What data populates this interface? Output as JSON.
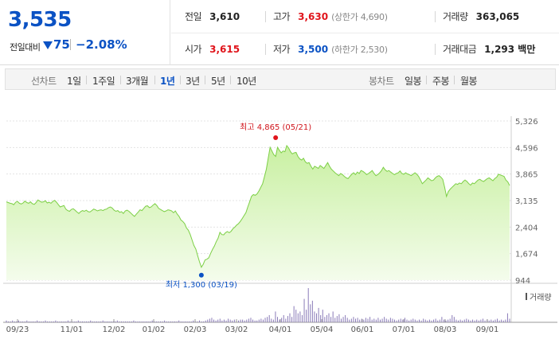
{
  "summary": {
    "current_price": "3,535",
    "change_label": "전일대비",
    "change_amount": "75",
    "change_rate": "−2.08%",
    "prev_close": {
      "label": "전일",
      "value": "3,610"
    },
    "high": {
      "label": "고가",
      "value": "3,630",
      "sub": "(상한가 4,690)"
    },
    "volume": {
      "label": "거래량",
      "value": "363,065"
    },
    "open": {
      "label": "시가",
      "value": "3,615"
    },
    "low": {
      "label": "저가",
      "value": "3,500",
      "sub": "(하한가 2,530)"
    },
    "turnover": {
      "label": "거래대금",
      "value": "1,293 백만"
    }
  },
  "tabs": {
    "line_label": "선차트",
    "line_items": [
      "1일",
      "1주일",
      "3개월",
      "1년",
      "3년",
      "5년",
      "10년"
    ],
    "active": "1년",
    "candle_label": "봉차트",
    "candle_items": [
      "일봉",
      "주봉",
      "월봉"
    ]
  },
  "colors": {
    "up": "#e0141b",
    "down": "#0b52c4",
    "area_fill": "#c9f0a2",
    "line": "#7ccf45",
    "volume": "#8a7bb8"
  },
  "chart_data": {
    "type": "area",
    "y_ticks": [
      944,
      1674,
      2404,
      3135,
      3865,
      4596,
      5326
    ],
    "ylim": [
      944,
      5326
    ],
    "x_ticks": [
      "09/23",
      "11/01",
      "12/02",
      "01/02",
      "02/03",
      "03/02",
      "04/01",
      "05/04",
      "06/01",
      "07/01",
      "08/03",
      "09/01"
    ],
    "series": [
      {
        "values": [
          3100,
          3080,
          3060,
          3050,
          3020,
          3090,
          3110,
          3060,
          3040,
          3070,
          3120,
          3080,
          3060,
          3100,
          3050,
          3030,
          3080,
          3150,
          3120,
          3090,
          3100,
          3130,
          3070,
          3090,
          3060,
          3110,
          3140,
          3090,
          3020,
          2960,
          2980,
          3000,
          2900,
          2860,
          2840,
          2890,
          2910,
          2870,
          2820,
          2780,
          2830,
          2860,
          2840,
          2870,
          2830,
          2820,
          2860,
          2900,
          2880,
          2850,
          2870,
          2880,
          2860,
          2890,
          2900,
          2940,
          2960,
          2930,
          2870,
          2840,
          2860,
          2810,
          2830,
          2780,
          2850,
          2870,
          2840,
          2790,
          2740,
          2700,
          2760,
          2820,
          2880,
          2860,
          2920,
          2980,
          2990,
          2940,
          2960,
          3010,
          3050,
          3000,
          2920,
          2890,
          2860,
          2830,
          2850,
          2880,
          2870,
          2850,
          2800,
          2850,
          2760,
          2700,
          2600,
          2560,
          2500,
          2380,
          2320,
          2200,
          2050,
          1900,
          1800,
          1620,
          1450,
          1300,
          1380,
          1500,
          1520,
          1560,
          1680,
          1790,
          1880,
          2000,
          2100,
          2260,
          2200,
          2190,
          2250,
          2280,
          2250,
          2290,
          2360,
          2400,
          2460,
          2500,
          2560,
          2640,
          2720,
          2800,
          2960,
          3100,
          3250,
          3300,
          3280,
          3320,
          3400,
          3500,
          3600,
          3800,
          4000,
          4300,
          4600,
          4500,
          4400,
          4350,
          4600,
          4520,
          4450,
          4500,
          4480,
          4650,
          4580,
          4480,
          4420,
          4450,
          4460,
          4350,
          4280,
          4250,
          4300,
          4200,
          4160,
          4180,
          4080,
          4000,
          4080,
          4050,
          4020,
          4100,
          4060,
          4020,
          4100,
          4180,
          4080,
          4000,
          3950,
          3900,
          3860,
          3820,
          3880,
          3850,
          3800,
          3760,
          3740,
          3800,
          3860,
          3900,
          3850,
          3920,
          3880,
          3960,
          3940,
          3900,
          3850,
          3880,
          3920,
          3960,
          3880,
          3820,
          3850,
          3900,
          3960,
          4050,
          3980,
          3940,
          3960,
          3920,
          3880,
          3850,
          3880,
          3900,
          3950,
          3880,
          3860,
          3900,
          3870,
          3850,
          3820,
          3860,
          3900,
          3860,
          3800,
          3700,
          3600,
          3650,
          3700,
          3760,
          3720,
          3680,
          3700,
          3760,
          3800,
          3820,
          3780,
          3720,
          3500,
          3250,
          3380,
          3450,
          3500,
          3550,
          3600,
          3580,
          3620,
          3600,
          3660,
          3700,
          3660,
          3600,
          3560,
          3620,
          3600,
          3650,
          3700,
          3720,
          3680,
          3660,
          3700,
          3740,
          3760,
          3720,
          3680,
          3740,
          3780,
          3860,
          3840,
          3820,
          3800,
          3700,
          3650,
          3550
        ]
      }
    ],
    "volume_values": [
      2,
      1,
      1,
      2,
      1,
      1,
      2,
      1,
      1,
      1,
      2,
      1,
      1,
      1,
      1,
      2,
      1,
      1,
      1,
      2,
      1,
      1,
      1,
      1,
      2,
      1,
      1,
      1,
      1,
      1,
      2,
      1,
      1,
      1,
      1,
      2,
      1,
      1,
      1,
      1,
      1,
      2,
      1,
      1,
      1,
      1,
      1,
      2,
      1,
      1,
      1,
      1,
      1,
      1,
      2,
      1,
      1,
      1,
      1,
      1,
      1,
      1,
      2,
      1,
      1,
      1,
      1,
      1,
      1,
      1,
      1,
      2,
      1,
      1,
      1,
      1,
      1,
      2,
      1,
      1,
      1,
      1,
      1,
      1,
      2,
      1,
      1,
      1,
      1,
      1,
      1,
      2,
      1,
      1,
      2,
      1,
      1,
      2,
      3,
      4,
      5,
      3,
      2,
      3,
      4,
      2,
      3,
      2,
      4,
      3,
      2,
      3,
      2,
      2,
      3,
      3,
      2,
      3,
      4,
      5,
      3,
      2,
      2,
      3,
      4,
      3,
      5,
      6,
      8,
      4,
      3,
      12,
      6,
      3,
      5,
      8,
      4,
      7,
      10,
      6,
      18,
      14,
      10,
      12,
      8,
      26,
      14,
      38,
      20,
      24,
      12,
      10,
      16,
      8,
      14,
      6,
      8,
      10,
      6,
      12,
      5,
      7,
      9,
      4,
      6,
      8,
      5,
      3,
      4,
      6,
      4,
      5,
      3,
      4,
      3,
      5,
      4,
      6,
      3,
      4,
      3,
      5,
      3,
      4,
      6,
      4,
      3,
      5,
      4,
      3,
      2,
      3,
      4,
      3,
      5,
      3,
      2,
      3,
      4,
      3,
      2,
      3,
      2,
      4,
      3,
      2,
      3,
      2,
      3,
      4,
      2,
      3,
      6,
      3,
      2,
      3,
      4,
      8,
      6,
      3,
      2,
      3,
      2,
      3,
      4,
      3,
      2,
      3,
      2,
      3,
      2,
      3,
      4,
      2,
      3,
      2,
      3,
      2,
      3,
      4,
      2,
      3,
      2,
      3,
      10,
      4
    ],
    "volume_label": "거래량",
    "high_annotation": "최고 4,865 (05/21)",
    "low_annotation": "최저 1,300 (03/19)"
  }
}
